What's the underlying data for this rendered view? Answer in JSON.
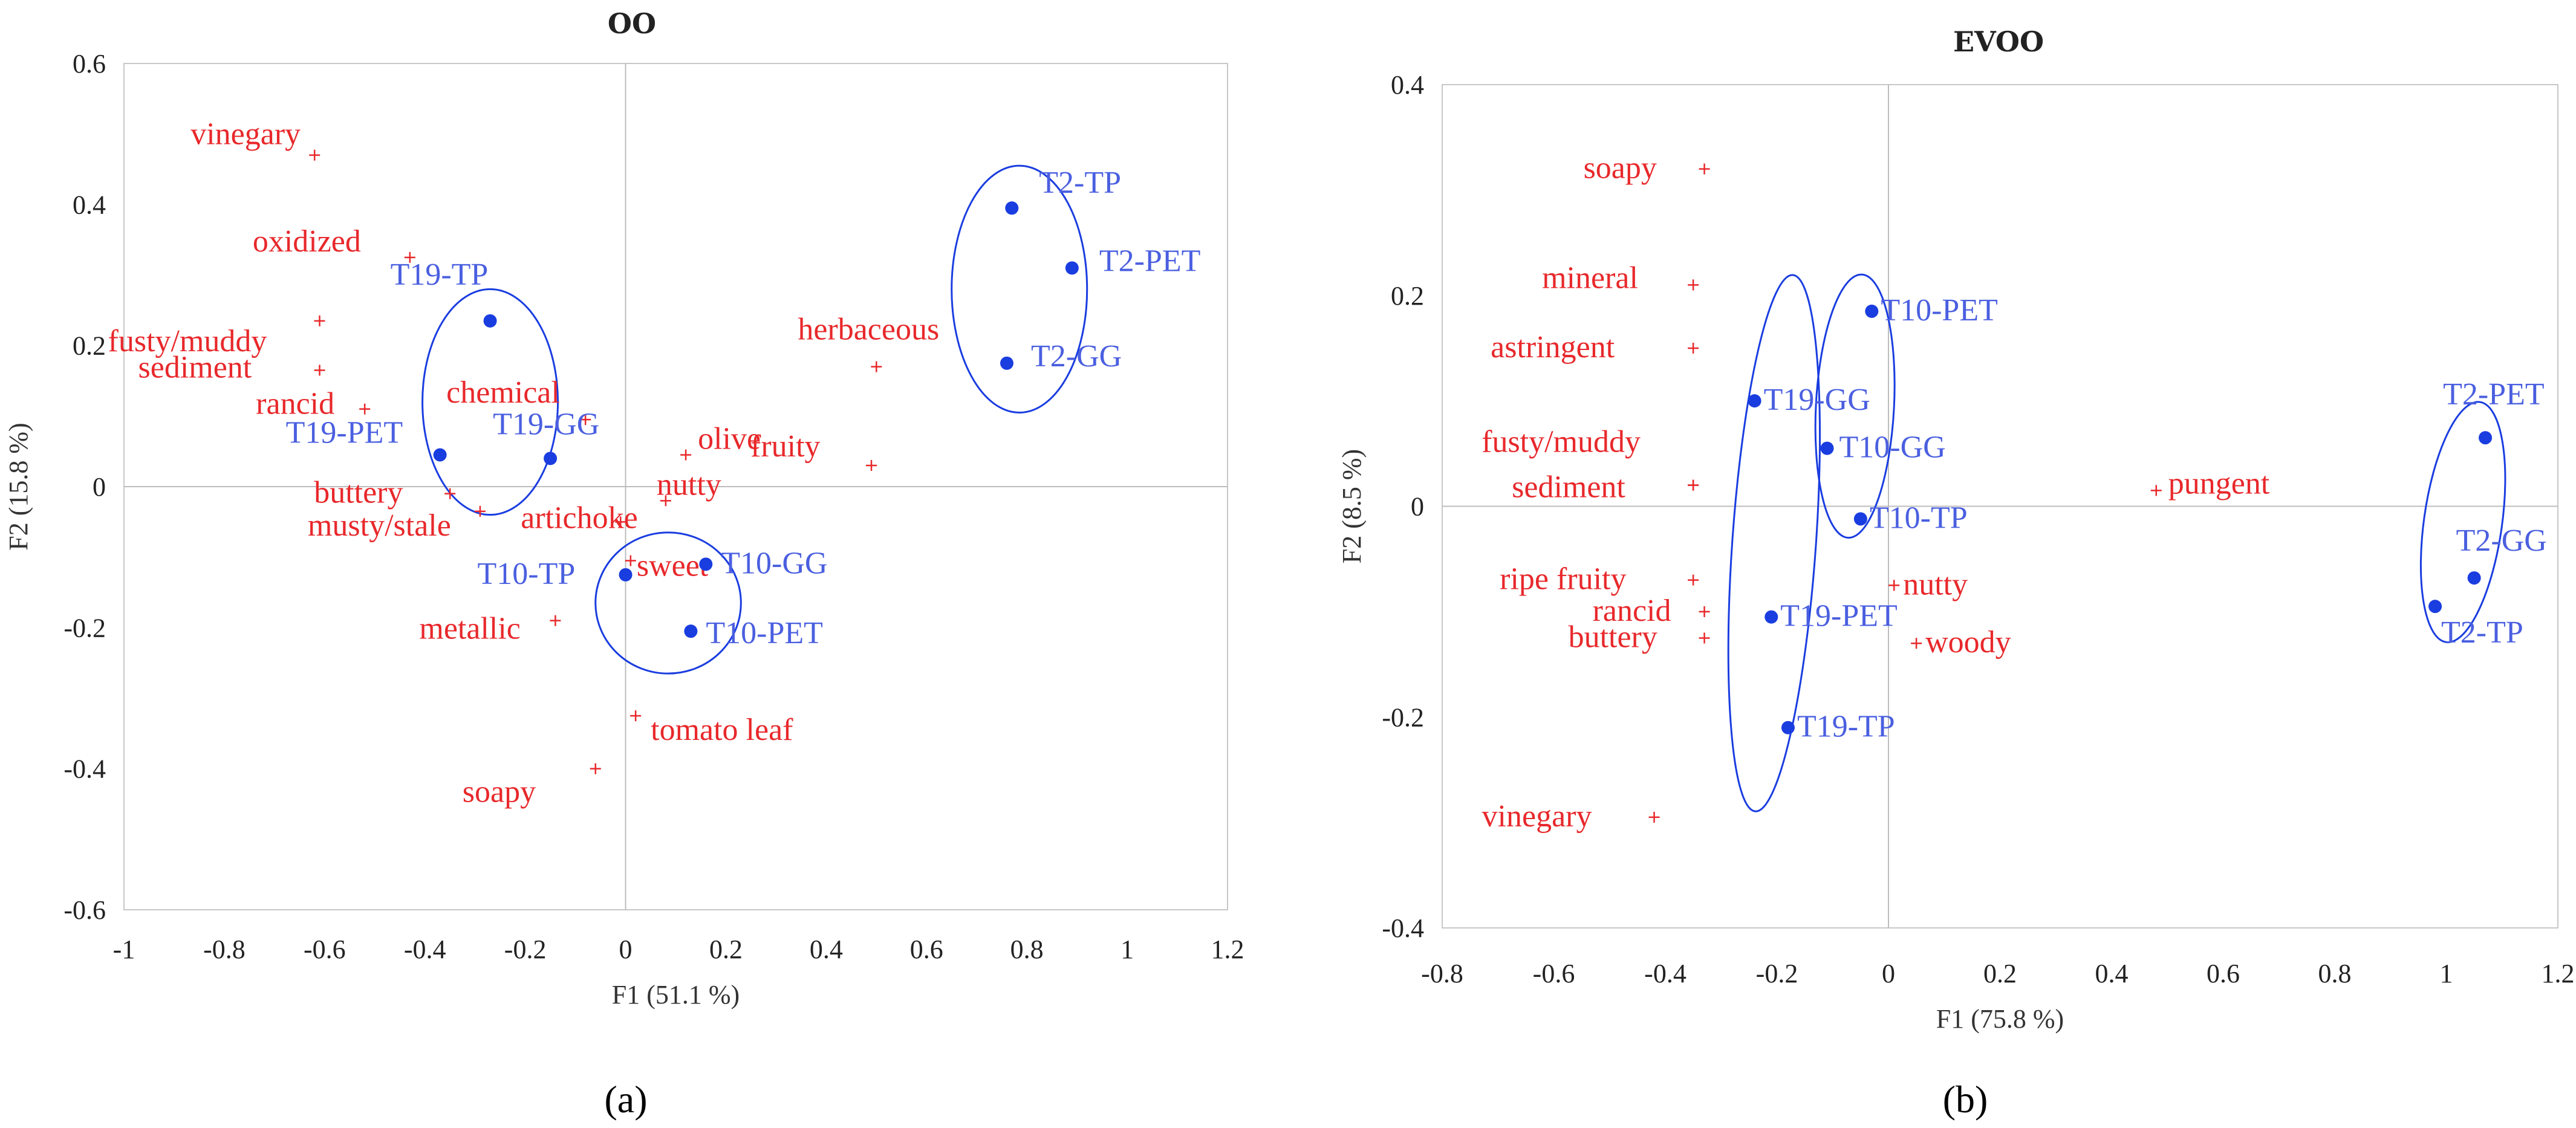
{
  "chart_data": [
    {
      "type": "scatter",
      "panel_label": "(a)",
      "title": "OO",
      "xlabel": "F1 (51.1 %)",
      "ylabel": "F2 (15.8 %)",
      "xlim": [
        -1,
        1.2
      ],
      "ylim": [
        -0.6,
        0.6
      ],
      "xticks": [
        -1,
        -0.8,
        -0.6,
        -0.4,
        -0.2,
        0,
        0.2,
        0.4,
        0.6,
        0.8,
        1,
        1.2
      ],
      "xtick_labels": [
        "-1",
        "-0.8",
        "-0.6",
        "-0.4",
        "-0.2",
        "0",
        "0.2",
        "0.4",
        "0.6",
        "0.8",
        "1",
        "1.2"
      ],
      "yticks": [
        0.6,
        0.4,
        0.2,
        0,
        -0.2,
        -0.4,
        -0.6
      ],
      "ytick_labels": [
        "0.6",
        "0.4",
        "0.2",
        "0",
        "-0.2",
        "-0.4",
        "-0.6"
      ],
      "colors": {
        "attributes": "#e8282b",
        "samples": "#1a3de0",
        "labels_samples": "#4a5fe0"
      },
      "attributes": [
        {
          "label": "vinegary",
          "x": -0.62,
          "y": 0.47
        },
        {
          "label": "oxidized",
          "x": -0.43,
          "y": 0.325
        },
        {
          "label": "fusty/muddy",
          "x": -0.61,
          "y": 0.235
        },
        {
          "label": "sediment",
          "x": -0.61,
          "y": 0.165
        },
        {
          "label": "rancid",
          "x": -0.52,
          "y": 0.11
        },
        {
          "label": "chemical",
          "x": -0.08,
          "y": 0.095
        },
        {
          "label": "buttery",
          "x": -0.35,
          "y": -0.01
        },
        {
          "label": "musty/stale",
          "x": -0.29,
          "y": -0.035
        },
        {
          "label": "artichoke",
          "x": -0.01,
          "y": -0.05
        },
        {
          "label": "olive",
          "x": 0.12,
          "y": 0.045
        },
        {
          "label": "fruity",
          "x": 0.49,
          "y": 0.03
        },
        {
          "label": "nutty",
          "x": 0.08,
          "y": -0.02
        },
        {
          "label": "sweet",
          "x": 0.01,
          "y": -0.105
        },
        {
          "label": "metallic",
          "x": -0.14,
          "y": -0.19
        },
        {
          "label": "tomato leaf",
          "x": 0.02,
          "y": -0.325
        },
        {
          "label": "soapy",
          "x": -0.06,
          "y": -0.4
        },
        {
          "label": "herbaceous",
          "x": 0.5,
          "y": 0.17
        }
      ],
      "samples": [
        {
          "label": "T2-TP",
          "x": 0.77,
          "y": 0.395
        },
        {
          "label": "T2-PET",
          "x": 0.89,
          "y": 0.31
        },
        {
          "label": "T2-GG",
          "x": 0.76,
          "y": 0.175
        },
        {
          "label": "T19-TP",
          "x": -0.27,
          "y": 0.235
        },
        {
          "label": "T19-GG",
          "x": -0.15,
          "y": 0.04
        },
        {
          "label": "T19-PET",
          "x": -0.37,
          "y": 0.045
        },
        {
          "label": "T10-TP",
          "x": 0,
          "y": -0.125
        },
        {
          "label": "T10-GG",
          "x": 0.16,
          "y": -0.11
        },
        {
          "label": "T10-PET",
          "x": 0.13,
          "y": -0.205
        }
      ],
      "groups": [
        {
          "name": "T2",
          "cx": 0.785,
          "cy": 0.28,
          "rx": 0.135,
          "ry": 0.175
        },
        {
          "name": "T19",
          "cx": -0.27,
          "cy": 0.12,
          "rx": 0.135,
          "ry": 0.16
        },
        {
          "name": "T10",
          "cx": 0.085,
          "cy": -0.165,
          "rx": 0.145,
          "ry": 0.1
        }
      ]
    },
    {
      "type": "scatter",
      "panel_label": "(b)",
      "title": "EVOO",
      "xlabel": "F1 (75.8 %)",
      "ylabel": "F2 (8.5 %)",
      "xlim": [
        -0.8,
        1.2
      ],
      "ylim": [
        -0.4,
        0.4
      ],
      "xticks": [
        -0.8,
        -0.6,
        -0.4,
        -0.2,
        0,
        0.2,
        0.4,
        0.6,
        0.8,
        1,
        1.2
      ],
      "xtick_labels": [
        "-0.8",
        "-0.6",
        "-0.4",
        "-0.2",
        "0",
        "0.2",
        "0.4",
        "0.6",
        "0.8",
        "1",
        "1.2"
      ],
      "yticks": [
        0.4,
        0.2,
        0,
        -0.2,
        -0.4
      ],
      "ytick_labels": [
        "0.4",
        "0.2",
        "0",
        "-0.2",
        "-0.4"
      ],
      "colors": {
        "attributes": "#e8282b",
        "samples": "#1a3de0",
        "labels_samples": "#4a5fe0"
      },
      "attributes": [
        {
          "label": "soapy",
          "x": -0.33,
          "y": 0.32
        },
        {
          "label": "mineral",
          "x": -0.35,
          "y": 0.21
        },
        {
          "label": "astringent",
          "x": -0.35,
          "y": 0.15
        },
        {
          "label": "fusty/muddy",
          "x": -0.35,
          "y": 0.02
        },
        {
          "label": "sediment",
          "x": -0.35,
          "y": 0.02
        },
        {
          "label": "ripe fruity",
          "x": -0.35,
          "y": -0.07
        },
        {
          "label": "rancid",
          "x": -0.33,
          "y": -0.1
        },
        {
          "label": "buttery",
          "x": -0.33,
          "y": -0.125
        },
        {
          "label": "vinegary",
          "x": -0.42,
          "y": -0.295
        },
        {
          "label": "nutty",
          "x": 0.01,
          "y": -0.075
        },
        {
          "label": "woody",
          "x": 0.05,
          "y": -0.13
        },
        {
          "label": "pungent",
          "x": 0.48,
          "y": 0.015
        }
      ],
      "samples": [
        {
          "label": "T10-PET",
          "x": -0.03,
          "y": 0.185
        },
        {
          "label": "T19-GG",
          "x": -0.24,
          "y": 0.1
        },
        {
          "label": "T10-GG",
          "x": -0.11,
          "y": 0.055
        },
        {
          "label": "T10-TP",
          "x": -0.05,
          "y": -0.012
        },
        {
          "label": "T19-PET",
          "x": -0.21,
          "y": -0.105
        },
        {
          "label": "T19-TP",
          "x": -0.18,
          "y": -0.21
        },
        {
          "label": "T2-PET",
          "x": 1.07,
          "y": 0.065
        },
        {
          "label": "T2-GG",
          "x": 1.05,
          "y": -0.068
        },
        {
          "label": "T2-TP",
          "x": 0.98,
          "y": -0.095
        }
      ],
      "groups": [
        {
          "name": "T19",
          "cx": -0.205,
          "cy": -0.035,
          "rx": 0.075,
          "ry": 0.255,
          "rot": 0
        },
        {
          "name": "T10",
          "cx": -0.06,
          "cy": 0.095,
          "rx": 0.07,
          "ry": 0.125,
          "rot": 0
        },
        {
          "name": "T2",
          "cx": 1.03,
          "cy": -0.015,
          "rx": 0.07,
          "ry": 0.115,
          "rot": 0
        }
      ]
    }
  ]
}
